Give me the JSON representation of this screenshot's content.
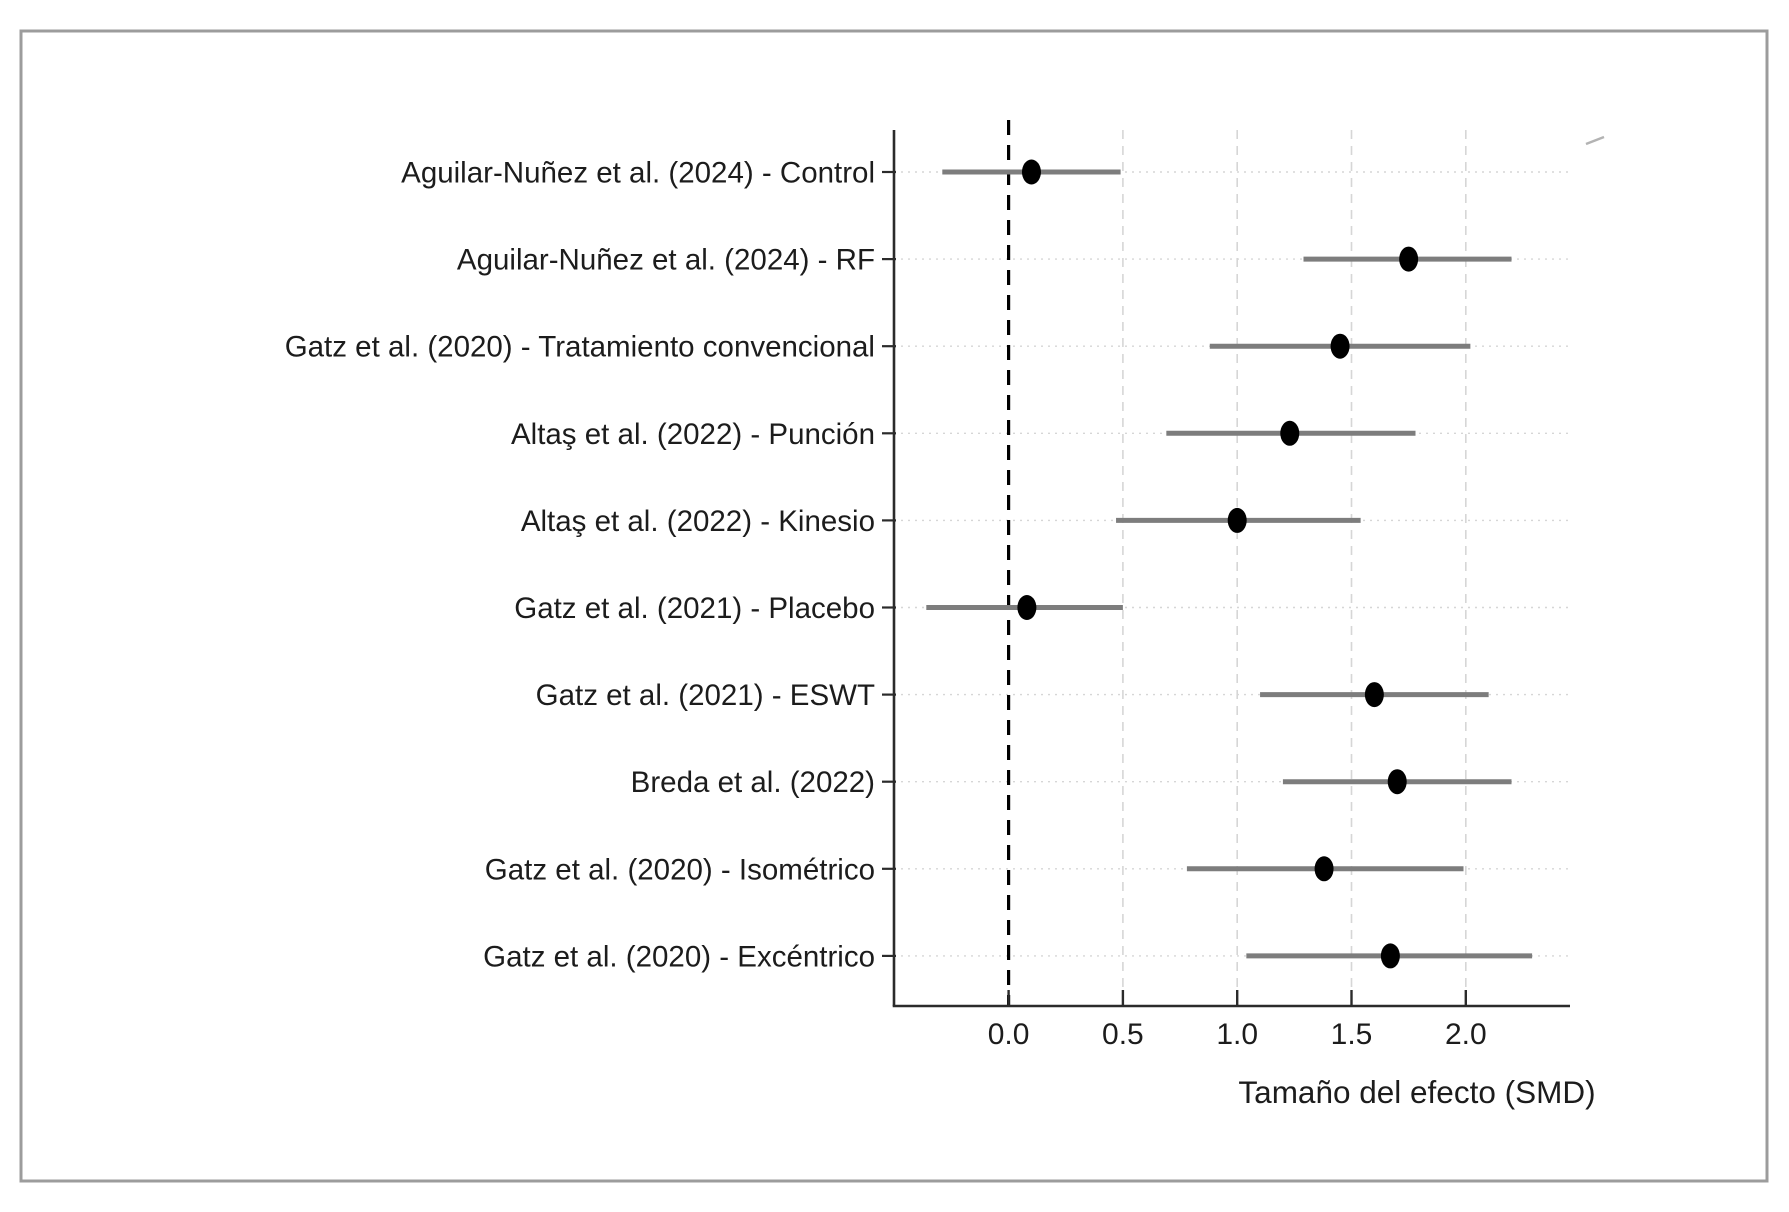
{
  "figure": {
    "kind": "forest-plot-screenshot"
  },
  "chart_data": {
    "type": "scatter",
    "subtype": "forest_plot",
    "title": "",
    "xlabel": "Tamaño del efecto (SMD)",
    "ylabel": "",
    "xlim": [
      -0.5,
      2.46
    ],
    "grid": true,
    "legend": "none",
    "reference_line_x": 0.0,
    "x_ticks": [
      0.0,
      0.5,
      1.0,
      1.5,
      2.0
    ],
    "x_tick_labels": [
      "0.0",
      "0.5",
      "1.0",
      "1.5",
      "2.0"
    ],
    "studies": [
      {
        "label": "Aguilar-Nuñez et al. (2024) - Control",
        "effect": 0.1,
        "ci_lower": -0.29,
        "ci_upper": 0.49
      },
      {
        "label": "Aguilar-Nuñez et al. (2024) - RF",
        "effect": 1.75,
        "ci_lower": 1.29,
        "ci_upper": 2.2
      },
      {
        "label": "Gatz et al. (2020) - Tratamiento convencional",
        "effect": 1.45,
        "ci_lower": 0.88,
        "ci_upper": 2.02
      },
      {
        "label": "Altaş et al. (2022) - Punción",
        "effect": 1.23,
        "ci_lower": 0.69,
        "ci_upper": 1.78
      },
      {
        "label": "Altaş et al. (2022) - Kinesio",
        "effect": 1.0,
        "ci_lower": 0.47,
        "ci_upper": 1.54
      },
      {
        "label": "Gatz et al. (2021) - Placebo",
        "effect": 0.08,
        "ci_lower": -0.36,
        "ci_upper": 0.5
      },
      {
        "label": "Gatz et al. (2021) - ESWT",
        "effect": 1.6,
        "ci_lower": 1.1,
        "ci_upper": 2.1
      },
      {
        "label": "Breda et al. (2022)",
        "effect": 1.7,
        "ci_lower": 1.2,
        "ci_upper": 2.2
      },
      {
        "label": "Gatz et al. (2020) - Isométrico",
        "effect": 1.38,
        "ci_lower": 0.78,
        "ci_upper": 1.99
      },
      {
        "label": "Gatz et al. (2020) - Excéntrico",
        "effect": 1.67,
        "ci_lower": 1.04,
        "ci_upper": 2.29
      }
    ]
  },
  "colors": {
    "background": "#ffffff",
    "frame_border": "#9c9c9c",
    "axis": "#2b2b2b",
    "text": "#1c1c1c",
    "grid": "#d6d6d6",
    "ci_line": "#7d7d7d",
    "point": "#000000",
    "reference_line": "#000000",
    "stray_mark": "#b3b3b3"
  }
}
